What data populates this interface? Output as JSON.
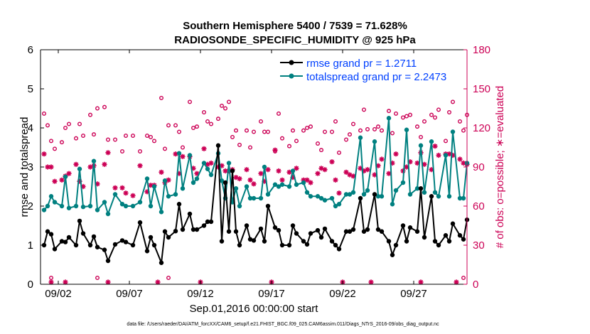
{
  "chart_data": {
    "type": "line",
    "title": "Southern Hemisphere 5400 / 7539 = 71.628%",
    "subtitle": "RADIOSONDE_SPECIFIC_HUMIDITY @ 925 hPa",
    "ylabel": "rmse and totalspread",
    "ylabel_right": "# of obs: o=possible; ∗=evaluated",
    "xlabel": "Sep.01,2016 00:00:00 start",
    "footnote": "data file: /Users/raeder/DAI/ATM_forcXX/CAM6_setup/f.e21.FHIST_BGC.f09_025.CAM6assim.011/Diags_NTrS_2016-09/obs_diag_output.nc",
    "ylim": [
      0,
      6
    ],
    "ylim_right": [
      0,
      180
    ],
    "xlim": [
      0.75,
      30.75
    ],
    "xticks": [
      2,
      7,
      12,
      17,
      22,
      27
    ],
    "xtick_labels": [
      "09/02",
      "09/07",
      "09/12",
      "09/17",
      "09/22",
      "09/27"
    ],
    "yticks": [
      0,
      1,
      2,
      3,
      4,
      5,
      6
    ],
    "yticks_right": [
      0,
      30,
      60,
      90,
      120,
      150,
      180
    ],
    "colors": {
      "rmse": "#000000",
      "totalspread": "#008080",
      "obs": "#cc0055",
      "legend_text": "#0040ff"
    },
    "legend": [
      {
        "name": "rmse grand pr = 1.2711"
      },
      {
        "name": "totalspread grand pr = 2.2473"
      }
    ],
    "series": [
      {
        "name": "rmse",
        "x": [
          1,
          1.25,
          1.5,
          1.75,
          2.25,
          2.5,
          2.75,
          3.25,
          3.5,
          3.75,
          4.25,
          4.5,
          4.75,
          5.25,
          5.5,
          6,
          6.5,
          6.75,
          7.25,
          7.75,
          8.25,
          8.5,
          8.75,
          9.25,
          9.5,
          9.75,
          10.25,
          10.5,
          10.75,
          11.25,
          11.5,
          11.75,
          12.25,
          12.5,
          12.75,
          13.25,
          13.5,
          13.75,
          14,
          14.25,
          14.5,
          14.75,
          15.25,
          15.5,
          15.75,
          16.25,
          16.5,
          16.75,
          17.25,
          17.5,
          17.75,
          18.25,
          18.5,
          18.75,
          19.25,
          19.5,
          19.75,
          20.25,
          20.5,
          20.75,
          21.25,
          21.5,
          21.75,
          22.25,
          22.5,
          22.75,
          23.25,
          23.5,
          23.75,
          24.25,
          24.5,
          24.75,
          25.25,
          25.5,
          25.75,
          26.25,
          26.5,
          26.75,
          27.25,
          27.5,
          27.75,
          28.25,
          28.5,
          28.75,
          29.25,
          29.5,
          29.75,
          30.25,
          30.5,
          30.75
        ],
        "values": [
          1.0,
          1.35,
          1.28,
          0.9,
          1.1,
          1.08,
          1.2,
          1.0,
          1.62,
          1.3,
          1.0,
          1.22,
          0.95,
          0.88,
          0.6,
          1.02,
          1.12,
          1.08,
          1.0,
          1.58,
          0.85,
          1.2,
          1.0,
          0.55,
          1.35,
          1.2,
          1.36,
          2.05,
          1.4,
          1.8,
          1.4,
          1.4,
          1.5,
          1.6,
          1.6,
          3.55,
          1.1,
          2.6,
          1.35,
          2.9,
          1.35,
          1.0,
          1.5,
          1.15,
          1.12,
          1.42,
          1.1,
          2.0,
          1.45,
          1.38,
          1.0,
          1.0,
          1.5,
          1.3,
          1.1,
          1.02,
          1.3,
          1.38,
          1.2,
          1.42,
          1.1,
          1.0,
          0.9,
          1.35,
          1.35,
          1.4,
          2.2,
          1.35,
          1.4,
          2.3,
          1.4,
          1.35,
          1.1,
          0.75,
          1.0,
          1.5,
          1.1,
          1.45,
          1.35,
          2.45,
          1.2,
          2.25,
          1.1,
          1.0,
          1.25,
          1.1,
          1.55,
          1.25,
          1.15,
          1.65
        ]
      },
      {
        "name": "totalspread",
        "x": [
          1,
          1.25,
          1.5,
          1.75,
          2.25,
          2.5,
          2.75,
          3.25,
          3.5,
          3.75,
          4.25,
          4.5,
          4.75,
          5.25,
          5.5,
          6,
          6.5,
          6.75,
          7.25,
          7.75,
          8.25,
          8.5,
          8.75,
          9.25,
          9.5,
          9.75,
          10.25,
          10.5,
          10.75,
          11.25,
          11.5,
          11.75,
          12.25,
          12.5,
          12.75,
          13.25,
          13.5,
          13.75,
          14,
          14.25,
          14.5,
          14.75,
          15.25,
          15.5,
          15.75,
          16.25,
          16.5,
          16.75,
          17.25,
          17.5,
          17.75,
          18.25,
          18.5,
          18.75,
          19.25,
          19.5,
          19.75,
          20.25,
          20.5,
          20.75,
          21.25,
          21.5,
          21.75,
          22.25,
          22.5,
          22.75,
          23.25,
          23.5,
          23.75,
          24.25,
          24.5,
          24.75,
          25.25,
          25.5,
          25.75,
          26.25,
          26.5,
          26.75,
          27.25,
          27.5,
          27.75,
          28.25,
          28.5,
          28.75,
          29.25,
          29.5,
          29.75,
          30.25,
          30.5,
          30.75
        ],
        "values": [
          1.9,
          2.0,
          2.25,
          2.1,
          2.0,
          2.75,
          1.95,
          2.0,
          2.95,
          1.98,
          2.0,
          3.15,
          1.9,
          2.1,
          1.8,
          2.3,
          2.05,
          2.0,
          2.0,
          2.1,
          2.7,
          2.0,
          2.5,
          1.85,
          2.65,
          2.25,
          2.3,
          3.35,
          2.45,
          3.3,
          2.6,
          2.7,
          3.1,
          2.95,
          2.8,
          3.35,
          2.65,
          2.2,
          3.1,
          2.1,
          2.45,
          2.0,
          2.5,
          2.2,
          2.2,
          2.2,
          3.0,
          2.3,
          2.55,
          2.5,
          2.55,
          2.5,
          2.9,
          2.55,
          2.6,
          2.35,
          2.25,
          2.25,
          2.2,
          2.15,
          2.2,
          2.0,
          2.05,
          2.3,
          2.3,
          2.35,
          3.75,
          2.3,
          2.4,
          3.65,
          2.25,
          2.25,
          4.25,
          2.05,
          2.4,
          2.6,
          3.95,
          2.3,
          2.45,
          3.55,
          2.35,
          3.65,
          2.35,
          2.25,
          3.3,
          2.25,
          3.9,
          2.2,
          2.2,
          3.1
        ]
      },
      {
        "name": "obs_possible",
        "x": [
          1,
          1.25,
          1.5,
          1.75,
          2.25,
          2.5,
          2.75,
          3.25,
          3.5,
          3.75,
          4.25,
          4.5,
          4.75,
          5.25,
          5.5,
          6,
          6.5,
          6.75,
          7.25,
          7.75,
          8.25,
          8.5,
          8.75,
          9.25,
          9.5,
          9.75,
          10.25,
          10.5,
          10.75,
          11.25,
          11.5,
          11.75,
          12.25,
          12.5,
          12.75,
          13.25,
          13.5,
          13.75,
          14,
          14.25,
          14.5,
          14.75,
          15.25,
          15.5,
          15.75,
          16.25,
          16.5,
          16.75,
          17.25,
          17.5,
          17.75,
          18.25,
          18.5,
          18.75,
          19.25,
          19.5,
          19.75,
          20.25,
          20.5,
          20.75,
          21.25,
          21.5,
          21.75,
          22.25,
          22.5,
          22.75,
          23.25,
          23.5,
          23.75,
          24.25,
          24.5,
          24.75,
          25.25,
          25.5,
          25.75,
          26.25,
          26.5,
          26.75,
          27.25,
          27.5,
          27.75,
          28.25,
          28.5,
          28.75,
          29.25,
          29.5,
          29.75,
          30.25,
          30.5,
          30.75
        ],
        "values": [
          131,
          122,
          110,
          104,
          109,
          120,
          123,
          112,
          123,
          114,
          130,
          115,
          135,
          136,
          111,
          111,
          102,
          114,
          114,
          102,
          114,
          113,
          110,
          143,
          104,
          122,
          122,
          117,
          105,
          140,
          120,
          121,
          132,
          125,
          123,
          127,
          137,
          135,
          140,
          113,
          118,
          107,
          118,
          105,
          117,
          125,
          117,
          117,
          102,
          131,
          112,
          106,
          118,
          110,
          118,
          120,
          121,
          108,
          103,
          117,
          117,
          125,
          101,
          111,
          115,
          123,
          118,
          134,
          119,
          119,
          121,
          118,
          133,
          116,
          131,
          128,
          129,
          130,
          121,
          113,
          125,
          130,
          128,
          134,
          110,
          132,
          140,
          125,
          118,
          130
        ]
      },
      {
        "name": "obs_evaluated",
        "x": [
          1,
          1.25,
          1.5,
          1.75,
          2.25,
          2.5,
          2.75,
          3.25,
          3.5,
          3.75,
          4.25,
          4.5,
          4.75,
          5.25,
          5.5,
          6,
          6.5,
          6.75,
          7.25,
          7.75,
          8.25,
          8.5,
          8.75,
          9.25,
          9.5,
          9.75,
          10.25,
          10.5,
          10.75,
          11.25,
          11.5,
          11.75,
          12.25,
          12.5,
          12.75,
          13.25,
          13.5,
          13.75,
          14,
          14.25,
          14.5,
          14.75,
          15.25,
          15.5,
          15.75,
          16.25,
          16.5,
          16.75,
          17.25,
          17.5,
          17.75,
          18.25,
          18.5,
          18.75,
          19.25,
          19.5,
          19.75,
          20.25,
          20.5,
          20.75,
          21.25,
          21.5,
          21.75,
          22.25,
          22.5,
          22.75,
          23.25,
          23.5,
          23.75,
          24.25,
          24.5,
          24.75,
          25.25,
          25.5,
          25.75,
          26.25,
          26.5,
          26.75,
          27.25,
          27.5,
          27.75,
          28.25,
          28.5,
          28.75,
          29.25,
          29.5,
          29.75,
          30.25,
          30.5,
          30.75
        ],
        "values": [
          100,
          90,
          90,
          79,
          80,
          83,
          85,
          92,
          79,
          75,
          90,
          91,
          77,
          92,
          101,
          74,
          74,
          70,
          68,
          91,
          71,
          76,
          76,
          86,
          78,
          80,
          100,
          85,
          98,
          98,
          89,
          85,
          104,
          92,
          93,
          90,
          91,
          87,
          87,
          88,
          82,
          81,
          88,
          80,
          77,
          85,
          79,
          88,
          103,
          87,
          80,
          86,
          82,
          89,
          80,
          80,
          78,
          85,
          89,
          88,
          94,
          80,
          70,
          86,
          84,
          83,
          89,
          87,
          88,
          84,
          91,
          96,
          85,
          93,
          100,
          87,
          90,
          94,
          93,
          101,
          92,
          88,
          106,
          99,
          100,
          100,
          99,
          96,
          93,
          92
        ]
      }
    ],
    "obs_bottom_evaluated": [
      1.5,
      2.5,
      5.5,
      9,
      12,
      17,
      22,
      24,
      27.5,
      30
    ],
    "obs_bottom_possible": [
      1.5,
      4.75,
      9.75,
      30.5
    ]
  }
}
